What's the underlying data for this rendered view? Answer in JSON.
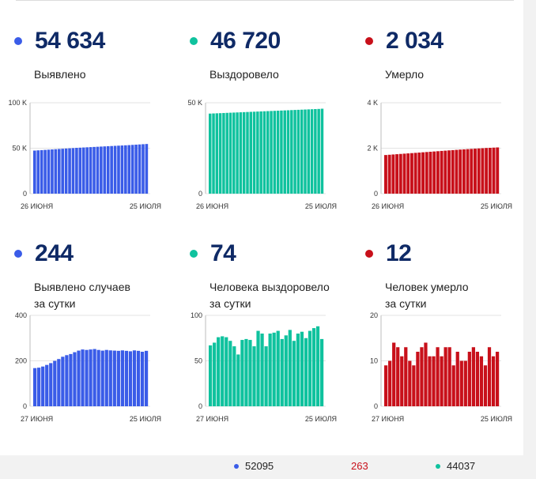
{
  "colors": {
    "blue": "#3a5ce8",
    "green": "#0fc29e",
    "red": "#c8101a",
    "value": "#0f2a66"
  },
  "panels": [
    {
      "id": "cases-total",
      "value": "54 634",
      "label_lines": [
        "Выявлено"
      ],
      "color": "#3a5ce8",
      "chart_data": {
        "type": "bar",
        "title": "",
        "y_tick_labels": [
          "100 K",
          "50 K",
          "0"
        ],
        "y_ticks": [
          100000,
          50000,
          0
        ],
        "ylim": [
          0,
          100000
        ],
        "x_tick_labels": [
          "26 ИЮНЯ",
          "25 ИЮЛЯ"
        ],
        "values": [
          47400,
          47650,
          47900,
          48150,
          48400,
          48650,
          48900,
          49150,
          49400,
          49650,
          49900,
          50150,
          50400,
          50600,
          50800,
          51000,
          51200,
          51400,
          51600,
          51800,
          52000,
          52200,
          52400,
          52600,
          52800,
          53000,
          53200,
          53400,
          53650,
          53900,
          54150,
          54400,
          54634
        ]
      }
    },
    {
      "id": "recovered-total",
      "value": "46 720",
      "label_lines": [
        "Выздоровело"
      ],
      "color": "#0fc29e",
      "chart_data": {
        "type": "bar",
        "title": "",
        "y_tick_labels": [
          "50 K",
          "0"
        ],
        "y_ticks": [
          50000,
          0
        ],
        "ylim": [
          0,
          50000
        ],
        "x_tick_labels": [
          "26 ИЮНЯ",
          "25 ИЮЛЯ"
        ],
        "values": [
          44040,
          44120,
          44200,
          44280,
          44360,
          44440,
          44520,
          44600,
          44680,
          44760,
          44840,
          44920,
          45000,
          45080,
          45160,
          45240,
          45320,
          45400,
          45480,
          45560,
          45640,
          45720,
          45800,
          45880,
          45960,
          46040,
          46120,
          46200,
          46280,
          46360,
          46440,
          46520,
          46600,
          46720
        ]
      }
    },
    {
      "id": "deaths-total",
      "value": "2 034",
      "label_lines": [
        "Умерло"
      ],
      "color": "#c8101a",
      "chart_data": {
        "type": "bar",
        "title": "",
        "y_tick_labels": [
          "4 K",
          "2 K",
          "0"
        ],
        "y_ticks": [
          4000,
          2000,
          0
        ],
        "ylim": [
          0,
          4000
        ],
        "x_tick_labels": [
          "26 ИЮНЯ",
          "25 ИЮЛЯ"
        ],
        "values": [
          1700,
          1712,
          1724,
          1736,
          1748,
          1760,
          1772,
          1784,
          1796,
          1808,
          1820,
          1832,
          1844,
          1856,
          1868,
          1880,
          1892,
          1904,
          1916,
          1928,
          1940,
          1950,
          1960,
          1970,
          1980,
          1990,
          2000,
          2010,
          2018,
          2026,
          2034
        ]
      }
    },
    {
      "id": "cases-daily",
      "value": "244",
      "label_lines": [
        "Выявлено случаев",
        "за сутки"
      ],
      "color": "#3a5ce8",
      "chart_data": {
        "type": "bar",
        "title": "",
        "y_tick_labels": [
          "400",
          "200",
          "0"
        ],
        "y_ticks": [
          400,
          200,
          0
        ],
        "ylim": [
          0,
          400
        ],
        "x_tick_labels": [
          "27 ИЮНЯ",
          "25 ИЮЛЯ"
        ],
        "values": [
          168,
          170,
          175,
          182,
          190,
          200,
          208,
          218,
          225,
          230,
          238,
          245,
          250,
          248,
          250,
          252,
          248,
          245,
          248,
          246,
          245,
          244,
          246,
          244,
          242,
          246,
          244,
          240,
          244
        ]
      }
    },
    {
      "id": "recovered-daily",
      "value": "74",
      "label_lines": [
        "Человека выздоровело",
        "за сутки"
      ],
      "color": "#0fc29e",
      "chart_data": {
        "type": "bar",
        "title": "",
        "y_tick_labels": [
          "100",
          "50",
          "0"
        ],
        "y_ticks": [
          100,
          50,
          0
        ],
        "ylim": [
          0,
          100
        ],
        "x_tick_labels": [
          "27 ИЮНЯ",
          "25 ИЮЛЯ"
        ],
        "values": [
          67,
          70,
          76,
          77,
          76,
          72,
          66,
          57,
          73,
          74,
          73,
          66,
          83,
          80,
          66,
          80,
          81,
          83,
          74,
          78,
          84,
          72,
          80,
          82,
          75,
          83,
          86,
          88,
          74
        ]
      }
    },
    {
      "id": "deaths-daily",
      "value": "12",
      "label_lines": [
        "Человек умерло",
        "за сутки"
      ],
      "color": "#c8101a",
      "chart_data": {
        "type": "bar",
        "title": "",
        "y_tick_labels": [
          "20",
          "10",
          "0"
        ],
        "y_ticks": [
          20,
          10,
          0
        ],
        "ylim": [
          0,
          20
        ],
        "x_tick_labels": [
          "27 ИЮНЯ",
          "25 ИЮЛЯ"
        ],
        "values": [
          9,
          10,
          14,
          13,
          11,
          13,
          10,
          9,
          12,
          13,
          14,
          11,
          11,
          13,
          11,
          13,
          13,
          9,
          12,
          10,
          10,
          12,
          13,
          12,
          11,
          9,
          13,
          11,
          12
        ]
      }
    }
  ],
  "legend": [
    {
      "value": "52095",
      "color": "#3a5ce8",
      "dot": true
    },
    {
      "value": "263",
      "color": "#c8101a",
      "dot": false
    },
    {
      "value": "44037",
      "color": "#0fc29e",
      "dot": true
    }
  ]
}
